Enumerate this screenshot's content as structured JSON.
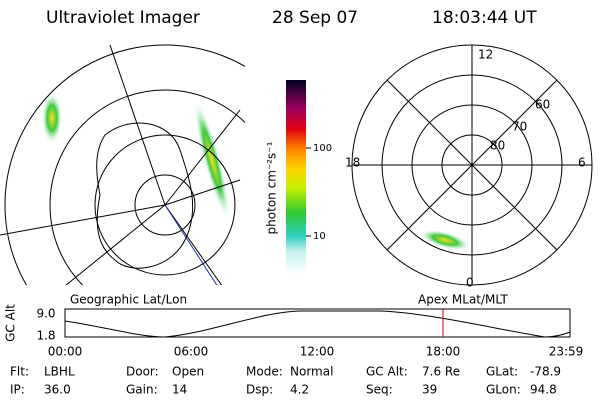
{
  "header": {
    "instrument": "Ultraviolet Imager",
    "date": "28 Sep 07",
    "time": "18:03:44 UT"
  },
  "colorbar": {
    "label": "photon cm⁻²s⁻¹",
    "ticks": [
      "100",
      "10"
    ]
  },
  "polar_plot": {
    "mlt_labels": [
      "12",
      "6",
      "0",
      "18"
    ],
    "mlat_labels": [
      "80",
      "70",
      "60"
    ]
  },
  "orbit_plot": {
    "left_title": "Geographic Lat/Lon",
    "right_title": "Apex MLat/MLT",
    "y_label": "GC Alt",
    "y_ticks": [
      "9.0",
      "1.8"
    ],
    "x_ticks": [
      "00:00",
      "06:00",
      "12:00",
      "18:00",
      "23:59"
    ]
  },
  "info": [
    [
      {
        "label": "Flt:",
        "value": "LBHL"
      },
      {
        "label": "Door:",
        "value": "Open"
      },
      {
        "label": "Mode:",
        "value": "Normal"
      },
      {
        "label": "GC Alt:",
        "value": "7.6 Re"
      },
      {
        "label": "GLat:",
        "value": "-78.9"
      }
    ],
    [
      {
        "label": "IP:",
        "value": "36.0"
      },
      {
        "label": "Gain:",
        "value": "14"
      },
      {
        "label": "Dsp:",
        "value": "4.2"
      },
      {
        "label": "Seq:",
        "value": "39"
      },
      {
        "label": "GLon:",
        "value": "94.8"
      }
    ]
  ]
}
